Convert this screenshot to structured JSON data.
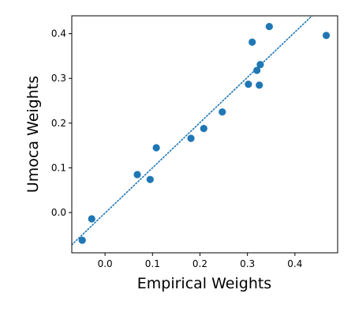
{
  "chart_data": {
    "type": "scatter",
    "title": "",
    "xlabel": "Empirical Weights",
    "ylabel": "Umoca Weights",
    "xlim": [
      -0.07,
      0.49
    ],
    "ylim": [
      -0.09,
      0.44
    ],
    "xticks": [
      0.0,
      0.1,
      0.2,
      0.3,
      0.4
    ],
    "xtick_labels": [
      "0.0",
      "0.1",
      "0.2",
      "0.3",
      "0.4"
    ],
    "yticks": [
      0.0,
      0.1,
      0.2,
      0.3,
      0.4
    ],
    "ytick_labels": [
      "0.0",
      "0.1",
      "0.2",
      "0.3",
      "0.4"
    ],
    "grid": false,
    "legend": "none",
    "point_color": "#1f77b4",
    "series": [
      {
        "points": [
          {
            "x": -0.048,
            "y": -0.062
          },
          {
            "x": -0.028,
            "y": -0.014
          },
          {
            "x": 0.068,
            "y": 0.085
          },
          {
            "x": 0.095,
            "y": 0.074
          },
          {
            "x": 0.108,
            "y": 0.145
          },
          {
            "x": 0.181,
            "y": 0.166
          },
          {
            "x": 0.208,
            "y": 0.188
          },
          {
            "x": 0.247,
            "y": 0.225
          },
          {
            "x": 0.302,
            "y": 0.287
          },
          {
            "x": 0.31,
            "y": 0.381
          },
          {
            "x": 0.32,
            "y": 0.318
          },
          {
            "x": 0.325,
            "y": 0.285
          },
          {
            "x": 0.327,
            "y": 0.331
          },
          {
            "x": 0.346,
            "y": 0.416
          },
          {
            "x": 0.466,
            "y": 0.396
          }
        ]
      }
    ],
    "fit_line": {
      "style": "dotted",
      "color": "#1f77b4",
      "x": [
        -0.07,
        0.44
      ],
      "y": [
        -0.072,
        0.444
      ]
    }
  }
}
